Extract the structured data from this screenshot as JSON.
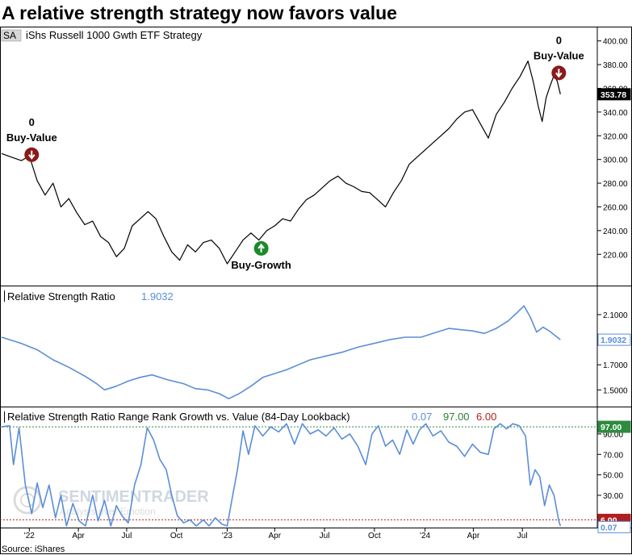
{
  "title": "A relative strength strategy now favors value",
  "source": "Source: iShares",
  "watermark": {
    "brand": "SENTIMENTRADER",
    "tagline": "Analysis over Emotion"
  },
  "chart_data": [
    {
      "type": "line",
      "panel": "price",
      "ticker_badge": "SA",
      "name": "iShs Russell 1000 Gwth ETF  Strategy",
      "last_value_label": "353.78",
      "ylim": [
        195,
        410
      ],
      "yticks": [
        "220.00",
        "240.00",
        "260.00",
        "280.00",
        "300.00",
        "320.00",
        "340.00",
        "360.00",
        "380.00",
        "400.00"
      ],
      "x_range": [
        0,
        720
      ],
      "points": [
        [
          0,
          305
        ],
        [
          12,
          302
        ],
        [
          25,
          299
        ],
        [
          35,
          303
        ],
        [
          45,
          282
        ],
        [
          55,
          270
        ],
        [
          65,
          280
        ],
        [
          75,
          260
        ],
        [
          85,
          267
        ],
        [
          95,
          255
        ],
        [
          105,
          245
        ],
        [
          115,
          248
        ],
        [
          125,
          235
        ],
        [
          135,
          230
        ],
        [
          145,
          218
        ],
        [
          155,
          225
        ],
        [
          165,
          244
        ],
        [
          175,
          250
        ],
        [
          185,
          256
        ],
        [
          195,
          250
        ],
        [
          205,
          235
        ],
        [
          215,
          222
        ],
        [
          225,
          215
        ],
        [
          235,
          228
        ],
        [
          245,
          222
        ],
        [
          255,
          230
        ],
        [
          265,
          232
        ],
        [
          275,
          225
        ],
        [
          285,
          212
        ],
        [
          295,
          222
        ],
        [
          305,
          232
        ],
        [
          315,
          238
        ],
        [
          325,
          232
        ],
        [
          335,
          240
        ],
        [
          345,
          244
        ],
        [
          355,
          250
        ],
        [
          365,
          248
        ],
        [
          375,
          258
        ],
        [
          385,
          266
        ],
        [
          395,
          270
        ],
        [
          405,
          276
        ],
        [
          415,
          282
        ],
        [
          425,
          286
        ],
        [
          435,
          280
        ],
        [
          445,
          277
        ],
        [
          455,
          273
        ],
        [
          465,
          272
        ],
        [
          475,
          266
        ],
        [
          485,
          260
        ],
        [
          495,
          272
        ],
        [
          505,
          282
        ],
        [
          515,
          296
        ],
        [
          525,
          302
        ],
        [
          535,
          308
        ],
        [
          545,
          314
        ],
        [
          555,
          320
        ],
        [
          565,
          326
        ],
        [
          575,
          334
        ],
        [
          585,
          340
        ],
        [
          595,
          342
        ],
        [
          605,
          330
        ],
        [
          615,
          318
        ],
        [
          625,
          338
        ],
        [
          635,
          348
        ],
        [
          645,
          360
        ],
        [
          655,
          370
        ],
        [
          665,
          383
        ],
        [
          672,
          365
        ],
        [
          678,
          345
        ],
        [
          683,
          332
        ],
        [
          688,
          352
        ],
        [
          693,
          362
        ],
        [
          698,
          371
        ],
        [
          702,
          366
        ],
        [
          706,
          355
        ]
      ],
      "signals": [
        {
          "label": "Buy-Value",
          "count": "0",
          "dir": "down",
          "x": 38,
          "y": 304
        },
        {
          "label": "Buy-Growth",
          "count": "",
          "dir": "up",
          "x": 328,
          "y": 225
        },
        {
          "label": "Buy-Value",
          "count": "0",
          "dir": "down",
          "x": 704,
          "y": 373
        }
      ]
    },
    {
      "type": "line",
      "panel": "ratio",
      "name": "Relative Strength Ratio",
      "last_value_label": "1.9032",
      "ylim": [
        1.38,
        2.19
      ],
      "yticks": [
        "1.5000",
        "1.7000",
        "1.9000",
        "2.1000"
      ],
      "points": [
        [
          0,
          1.92
        ],
        [
          25,
          1.87
        ],
        [
          45,
          1.82
        ],
        [
          65,
          1.74
        ],
        [
          85,
          1.68
        ],
        [
          105,
          1.61
        ],
        [
          120,
          1.55
        ],
        [
          130,
          1.5
        ],
        [
          145,
          1.53
        ],
        [
          160,
          1.57
        ],
        [
          175,
          1.6
        ],
        [
          190,
          1.62
        ],
        [
          210,
          1.58
        ],
        [
          230,
          1.55
        ],
        [
          245,
          1.51
        ],
        [
          260,
          1.5
        ],
        [
          275,
          1.47
        ],
        [
          287,
          1.43
        ],
        [
          300,
          1.47
        ],
        [
          315,
          1.53
        ],
        [
          330,
          1.6
        ],
        [
          345,
          1.63
        ],
        [
          360,
          1.66
        ],
        [
          375,
          1.7
        ],
        [
          390,
          1.74
        ],
        [
          410,
          1.77
        ],
        [
          430,
          1.8
        ],
        [
          450,
          1.84
        ],
        [
          470,
          1.87
        ],
        [
          490,
          1.9
        ],
        [
          510,
          1.92
        ],
        [
          530,
          1.92
        ],
        [
          545,
          1.95
        ],
        [
          565,
          1.99
        ],
        [
          580,
          1.98
        ],
        [
          595,
          1.97
        ],
        [
          610,
          1.95
        ],
        [
          625,
          1.99
        ],
        [
          640,
          2.05
        ],
        [
          652,
          2.12
        ],
        [
          660,
          2.17
        ],
        [
          668,
          2.08
        ],
        [
          676,
          1.96
        ],
        [
          684,
          2.0
        ],
        [
          692,
          1.97
        ],
        [
          698,
          1.94
        ],
        [
          706,
          1.9
        ]
      ]
    },
    {
      "type": "line",
      "panel": "range_rank",
      "name": "Relative Strength Ratio Range Rank Growth vs. Value (84-Day Lookback)",
      "value_labels": [
        "0.07",
        "97.00",
        "6.00"
      ],
      "thresholds": [
        97,
        6
      ],
      "ylim": [
        0,
        101
      ],
      "yticks": [
        "30.00",
        "50.00",
        "70.00",
        "90.00"
      ],
      "points": [
        [
          0,
          97
        ],
        [
          10,
          98
        ],
        [
          15,
          60
        ],
        [
          22,
          96
        ],
        [
          30,
          40
        ],
        [
          38,
          12
        ],
        [
          45,
          42
        ],
        [
          52,
          18
        ],
        [
          60,
          40
        ],
        [
          68,
          8
        ],
        [
          75,
          30
        ],
        [
          82,
          0
        ],
        [
          90,
          22
        ],
        [
          98,
          5
        ],
        [
          106,
          0
        ],
        [
          115,
          30
        ],
        [
          122,
          5
        ],
        [
          130,
          25
        ],
        [
          138,
          0
        ],
        [
          145,
          20
        ],
        [
          152,
          10
        ],
        [
          160,
          3
        ],
        [
          168,
          40
        ],
        [
          176,
          60
        ],
        [
          184,
          96
        ],
        [
          192,
          84
        ],
        [
          200,
          65
        ],
        [
          208,
          55
        ],
        [
          215,
          30
        ],
        [
          222,
          10
        ],
        [
          230,
          3
        ],
        [
          238,
          6
        ],
        [
          246,
          0
        ],
        [
          255,
          6
        ],
        [
          262,
          0
        ],
        [
          270,
          8
        ],
        [
          278,
          2
        ],
        [
          285,
          0
        ],
        [
          292,
          30
        ],
        [
          298,
          55
        ],
        [
          305,
          93
        ],
        [
          312,
          70
        ],
        [
          320,
          98
        ],
        [
          330,
          88
        ],
        [
          340,
          97
        ],
        [
          350,
          92
        ],
        [
          360,
          100
        ],
        [
          370,
          80
        ],
        [
          380,
          100
        ],
        [
          390,
          90
        ],
        [
          400,
          94
        ],
        [
          410,
          88
        ],
        [
          420,
          96
        ],
        [
          430,
          85
        ],
        [
          440,
          90
        ],
        [
          450,
          78
        ],
        [
          460,
          60
        ],
        [
          468,
          90
        ],
        [
          476,
          98
        ],
        [
          485,
          78
        ],
        [
          494,
          84
        ],
        [
          503,
          70
        ],
        [
          512,
          94
        ],
        [
          520,
          80
        ],
        [
          528,
          94
        ],
        [
          536,
          100
        ],
        [
          545,
          88
        ],
        [
          555,
          93
        ],
        [
          565,
          82
        ],
        [
          575,
          78
        ],
        [
          585,
          68
        ],
        [
          595,
          80
        ],
        [
          605,
          72
        ],
        [
          615,
          70
        ],
        [
          622,
          95
        ],
        [
          630,
          100
        ],
        [
          638,
          95
        ],
        [
          646,
          100
        ],
        [
          654,
          98
        ],
        [
          662,
          88
        ],
        [
          668,
          40
        ],
        [
          674,
          55
        ],
        [
          680,
          48
        ],
        [
          686,
          20
        ],
        [
          692,
          40
        ],
        [
          698,
          30
        ],
        [
          704,
          5
        ],
        [
          706,
          0
        ]
      ]
    }
  ],
  "x_axis": {
    "labels": [
      {
        "text": "'22",
        "x": 35
      },
      {
        "text": "Apr",
        "x": 97
      },
      {
        "text": "Jul",
        "x": 158
      },
      {
        "text": "Oct",
        "x": 221
      },
      {
        "text": "'23",
        "x": 285
      },
      {
        "text": "Apr",
        "x": 345
      },
      {
        "text": "Jul",
        "x": 408
      },
      {
        "text": "Oct",
        "x": 471
      },
      {
        "text": "'24",
        "x": 535
      },
      {
        "text": "Apr",
        "x": 596
      },
      {
        "text": "Jul",
        "x": 658
      }
    ]
  },
  "colors": {
    "price": "#000000",
    "ratio": "#5b8ed6",
    "buy_value": "#8b1a1a",
    "buy_growth": "#1a8a2a",
    "green_text": "#2e7d32",
    "red_text": "#b01f1f",
    "threshold_green": "#2e8b3e",
    "threshold_red": "#b01f1f"
  }
}
